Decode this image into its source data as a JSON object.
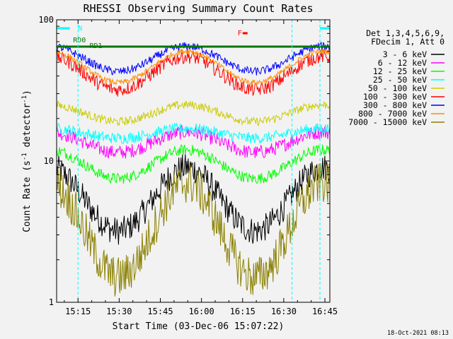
{
  "chart_data": {
    "type": "line",
    "title": "RHESSI Observing Summary Count Rates",
    "xlabel": "Start Time (03-Dec-06 15:07:22)",
    "ylabel": "Count Rate (s",
    "ylabel_sup": "-1",
    "ylabel_tail": " detector",
    "ylabel_sup2": "-1",
    "ylabel_end": ")",
    "yscale": "log",
    "ylim": [
      1,
      100
    ],
    "xlim_minutes": [
      15.12,
      16.78
    ],
    "x_tick_labels": [
      "15:15",
      "15:30",
      "15:45",
      "16:00",
      "16:15",
      "16:30",
      "16:45"
    ],
    "x_tick_values": [
      15.25,
      15.5,
      15.75,
      16.0,
      16.25,
      16.5,
      16.75
    ],
    "y_tick_labels": [
      "1",
      "10",
      "100"
    ],
    "y_tick_values": [
      1,
      10,
      100
    ],
    "legend_header": [
      "Det 1,3,4,5,6,9,",
      "FDecim 1, Att 0"
    ],
    "series": [
      {
        "name": "3 - 6 keV",
        "color": "#000000"
      },
      {
        "name": "6 - 12 keV",
        "color": "#ff00ff"
      },
      {
        "name": "12 - 25 keV",
        "color": "#00ff00"
      },
      {
        "name": "25 - 50 keV",
        "color": "#00ffff"
      },
      {
        "name": "50 - 100 keV",
        "color": "#cccc00"
      },
      {
        "name": "100 - 300 keV",
        "color": "#ff0000"
      },
      {
        "name": "300 - 800 keV",
        "color": "#0000ff"
      },
      {
        "name": "800 - 7000 keV",
        "color": "#ff8c00"
      },
      {
        "name": "7000 - 15000 keV",
        "color": "#8b8000"
      }
    ],
    "annotations": {
      "night_label": "N",
      "saa_label": "F",
      "rd0_label": "RD0",
      "rd1_label": "RD1"
    },
    "timestamp": "18-Oct-2021 08:13"
  }
}
